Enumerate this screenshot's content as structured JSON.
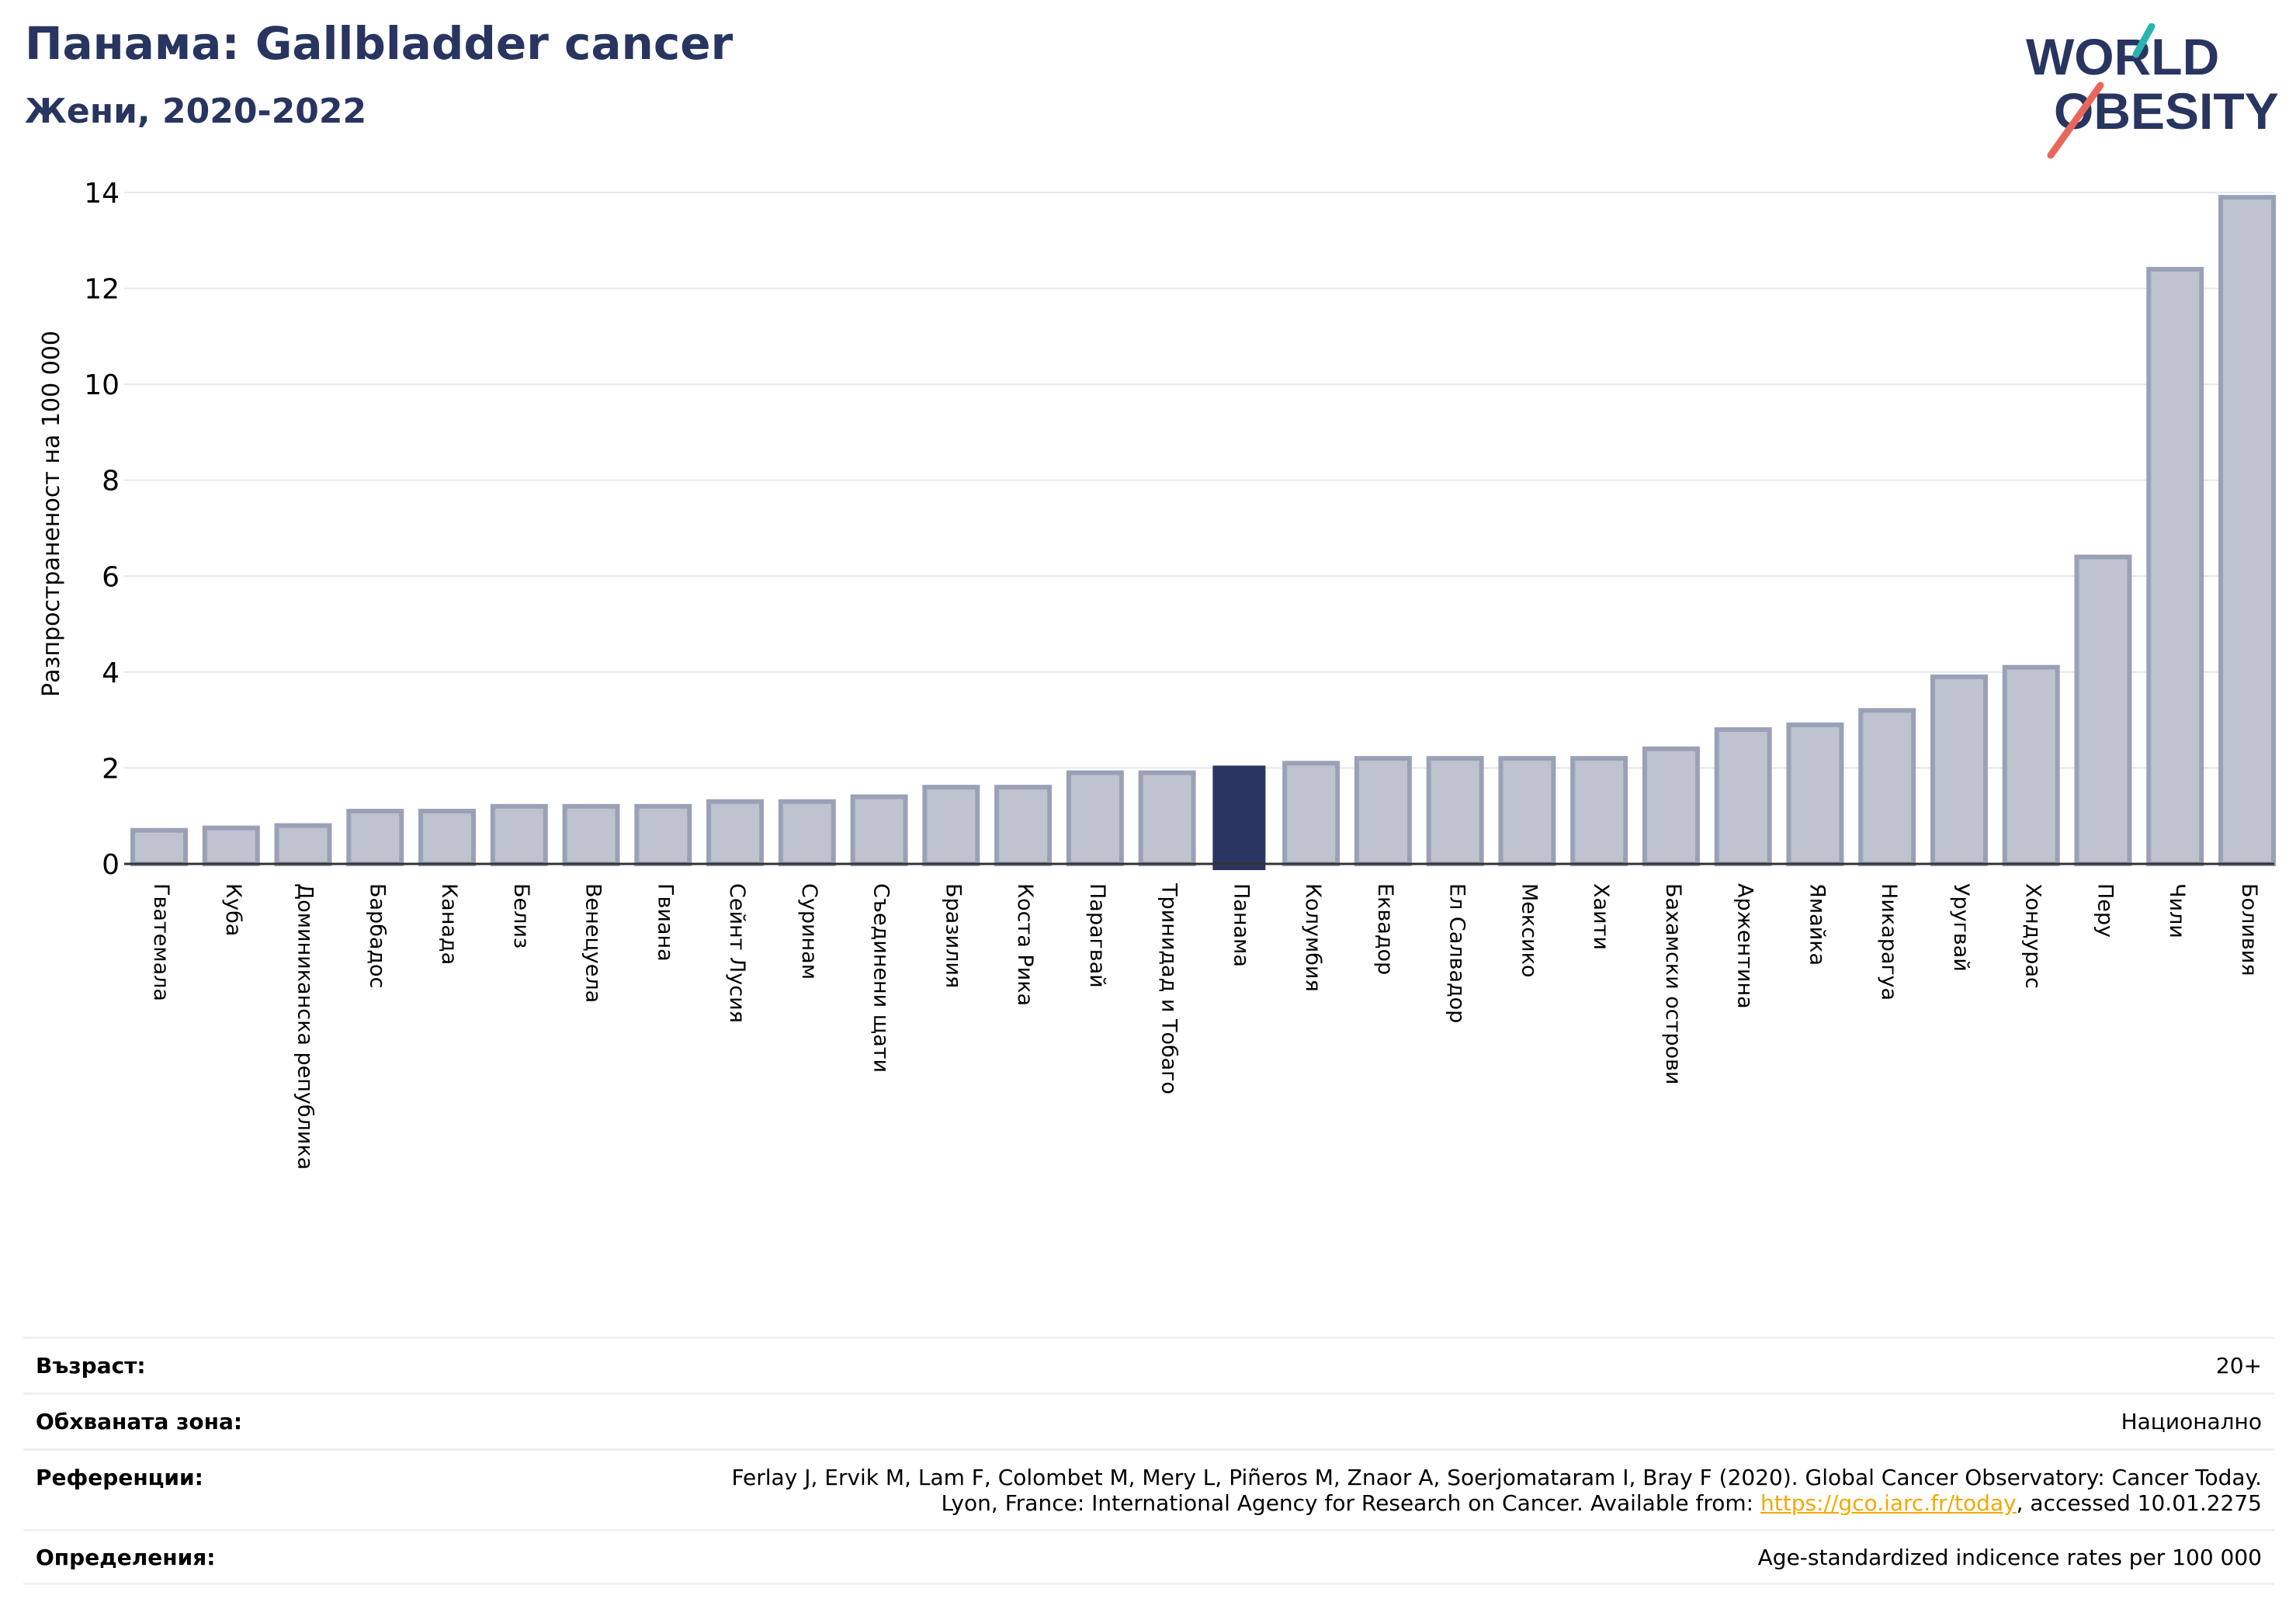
{
  "header": {
    "title": "Панама: Gallbladder cancer",
    "subtitle": "Жени, 2020-2022"
  },
  "logo": {
    "line1": "WORLD",
    "line2": "OBESITY"
  },
  "colors": {
    "bar": "#bfc3cf",
    "bar_stroke": "#9aa0b6",
    "highlight": "#2a3561",
    "grid": "#e6e8ee",
    "title": "#283560",
    "link": "#f2a900",
    "logo_teal": "#2ab3b0",
    "logo_red": "#e8675a"
  },
  "chart_data": {
    "type": "bar",
    "ylabel": "Разпространеност  на 100 000",
    "ylim": [
      0,
      14
    ],
    "yticks": [
      0,
      2,
      4,
      6,
      8,
      10,
      12,
      14
    ],
    "grid": true,
    "highlight": "Панама",
    "categories": [
      "Гватемала",
      "Куба",
      "Доминиканска република",
      "Барбадос",
      "Канада",
      "Белиз",
      "Венецуела",
      "Гвиана",
      "Сейнт Лусия",
      "Суринам",
      "Съединени щати",
      "Бразилия",
      "Коста Рика",
      "Парагвай",
      "Тринидад и Тобаго",
      "Панама",
      "Колумбия",
      "Еквадор",
      "Ел Салвадор",
      "Мексико",
      "Хаити",
      "Бахамски острови",
      "Аржентина",
      "Ямайка",
      "Никарагуа",
      "Уругвай",
      "Хондурас",
      "Перу",
      "Чили",
      "Боливия"
    ],
    "values": [
      0.7,
      0.75,
      0.8,
      1.1,
      1.1,
      1.2,
      1.2,
      1.2,
      1.3,
      1.3,
      1.4,
      1.6,
      1.6,
      1.9,
      1.9,
      2.05,
      2.1,
      2.2,
      2.2,
      2.2,
      2.2,
      2.4,
      2.8,
      2.9,
      3.2,
      3.9,
      4.1,
      6.4,
      12.4,
      13.9
    ]
  },
  "info": {
    "age_label": "Възраст:",
    "age_value": "20+",
    "area_label": "Обхваната зона:",
    "area_value": "Национално",
    "refs_label": "Референции:",
    "refs_line1": "Ferlay J, Ervik M, Lam F, Colombet M, Mery L, Piñeros M, Znaor A, Soerjomataram I, Bray F (2020). Global Cancer Observatory: Cancer Today.",
    "refs_line2_pre": "Lyon, France: International Agency for Research on Cancer. Available from: ",
    "refs_link": "https://gco.iarc.fr/today",
    "refs_line2_post": ", accessed 10.01.2275",
    "defs_label": "Определения:",
    "defs_value": "Age-standardized indicence rates per 100 000"
  }
}
